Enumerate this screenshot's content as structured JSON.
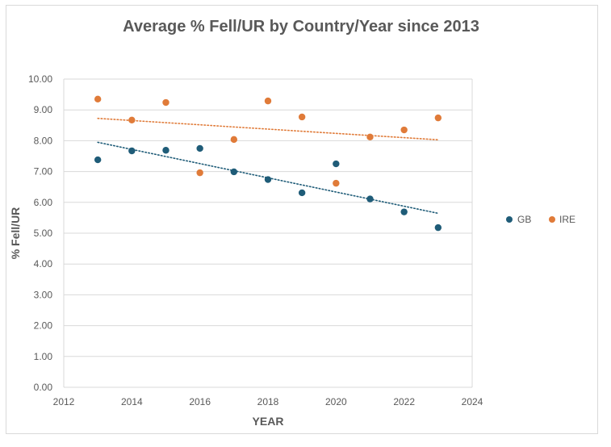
{
  "chart_data": {
    "type": "scatter",
    "title": "Average % Fell/UR by Country/Year since 2013",
    "xlabel": "YEAR",
    "ylabel": "% Fell/UR",
    "xlim": [
      2012,
      2024
    ],
    "ylim": [
      0,
      10
    ],
    "x_ticks": [
      2012,
      2014,
      2016,
      2018,
      2020,
      2022,
      2024
    ],
    "y_ticks": [
      "0.00",
      "1.00",
      "2.00",
      "3.00",
      "4.00",
      "5.00",
      "6.00",
      "7.00",
      "8.00",
      "9.00",
      "10.00"
    ],
    "grid": "horizontal",
    "legend_position": "right",
    "trendline": "linear, dotted",
    "series": [
      {
        "name": "GB",
        "color": "#1f5c78",
        "x": [
          2013,
          2014,
          2015,
          2016,
          2017,
          2018,
          2019,
          2020,
          2021,
          2022,
          2023
        ],
        "y": [
          7.38,
          7.67,
          7.69,
          7.75,
          6.99,
          6.74,
          6.31,
          7.25,
          6.11,
          5.69,
          5.18
        ]
      },
      {
        "name": "IRE",
        "color": "#e07b39",
        "x": [
          2013,
          2014,
          2015,
          2016,
          2017,
          2018,
          2019,
          2020,
          2021,
          2022,
          2023
        ],
        "y": [
          9.35,
          8.67,
          9.24,
          6.96,
          8.04,
          9.29,
          8.77,
          6.62,
          8.12,
          8.35,
          8.74
        ]
      }
    ]
  }
}
